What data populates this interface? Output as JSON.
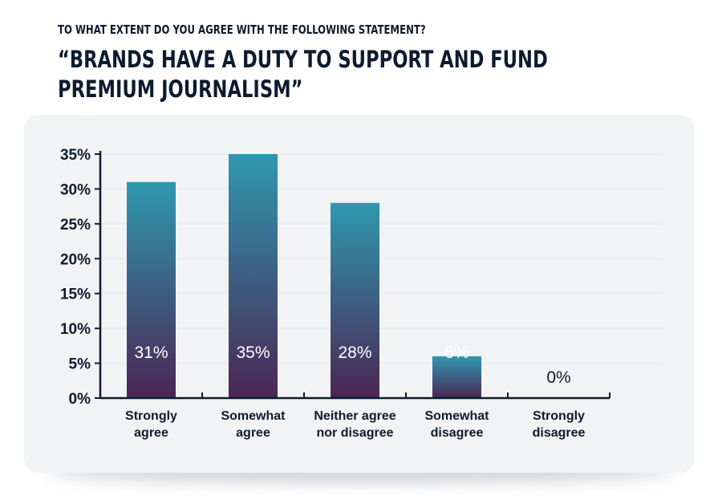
{
  "kicker": "TO WHAT EXTENT DO YOU AGREE WITH THE FOLLOWING STATEMENT?",
  "headline_lines": [
    "“BRANDS HAVE A DUTY TO SUPPORT AND FUND",
    "PREMIUM JOURNALISM”"
  ],
  "colors": {
    "bar_top": "#2f98b0",
    "bar_bottom": "#4b2654",
    "axis": "#0d1b2e",
    "grid": "#e4e6ea",
    "panel": "#f2f3f5",
    "value_label": "#ffffff",
    "value_label_outside": "#0d1b2e"
  },
  "chart_data": {
    "type": "bar",
    "title": "",
    "xlabel": "",
    "ylabel": "",
    "categories": [
      [
        "Strongly",
        "agree"
      ],
      [
        "Somewhat",
        "agree"
      ],
      [
        "Neither agree",
        "nor disagree"
      ],
      [
        "Somewhat",
        "disagree"
      ],
      [
        "Strongly",
        "disagree"
      ]
    ],
    "values": [
      31,
      35,
      28,
      6,
      0
    ],
    "value_labels": [
      "31%",
      "35%",
      "28%",
      "6%",
      "0%"
    ],
    "ylim": [
      0,
      35
    ],
    "yticks": [
      0,
      5,
      10,
      15,
      20,
      25,
      30,
      35
    ],
    "ytick_labels": [
      "0%",
      "5%",
      "10%",
      "15%",
      "20%",
      "25%",
      "30%",
      "35%"
    ],
    "grid": true,
    "legend": "none"
  }
}
